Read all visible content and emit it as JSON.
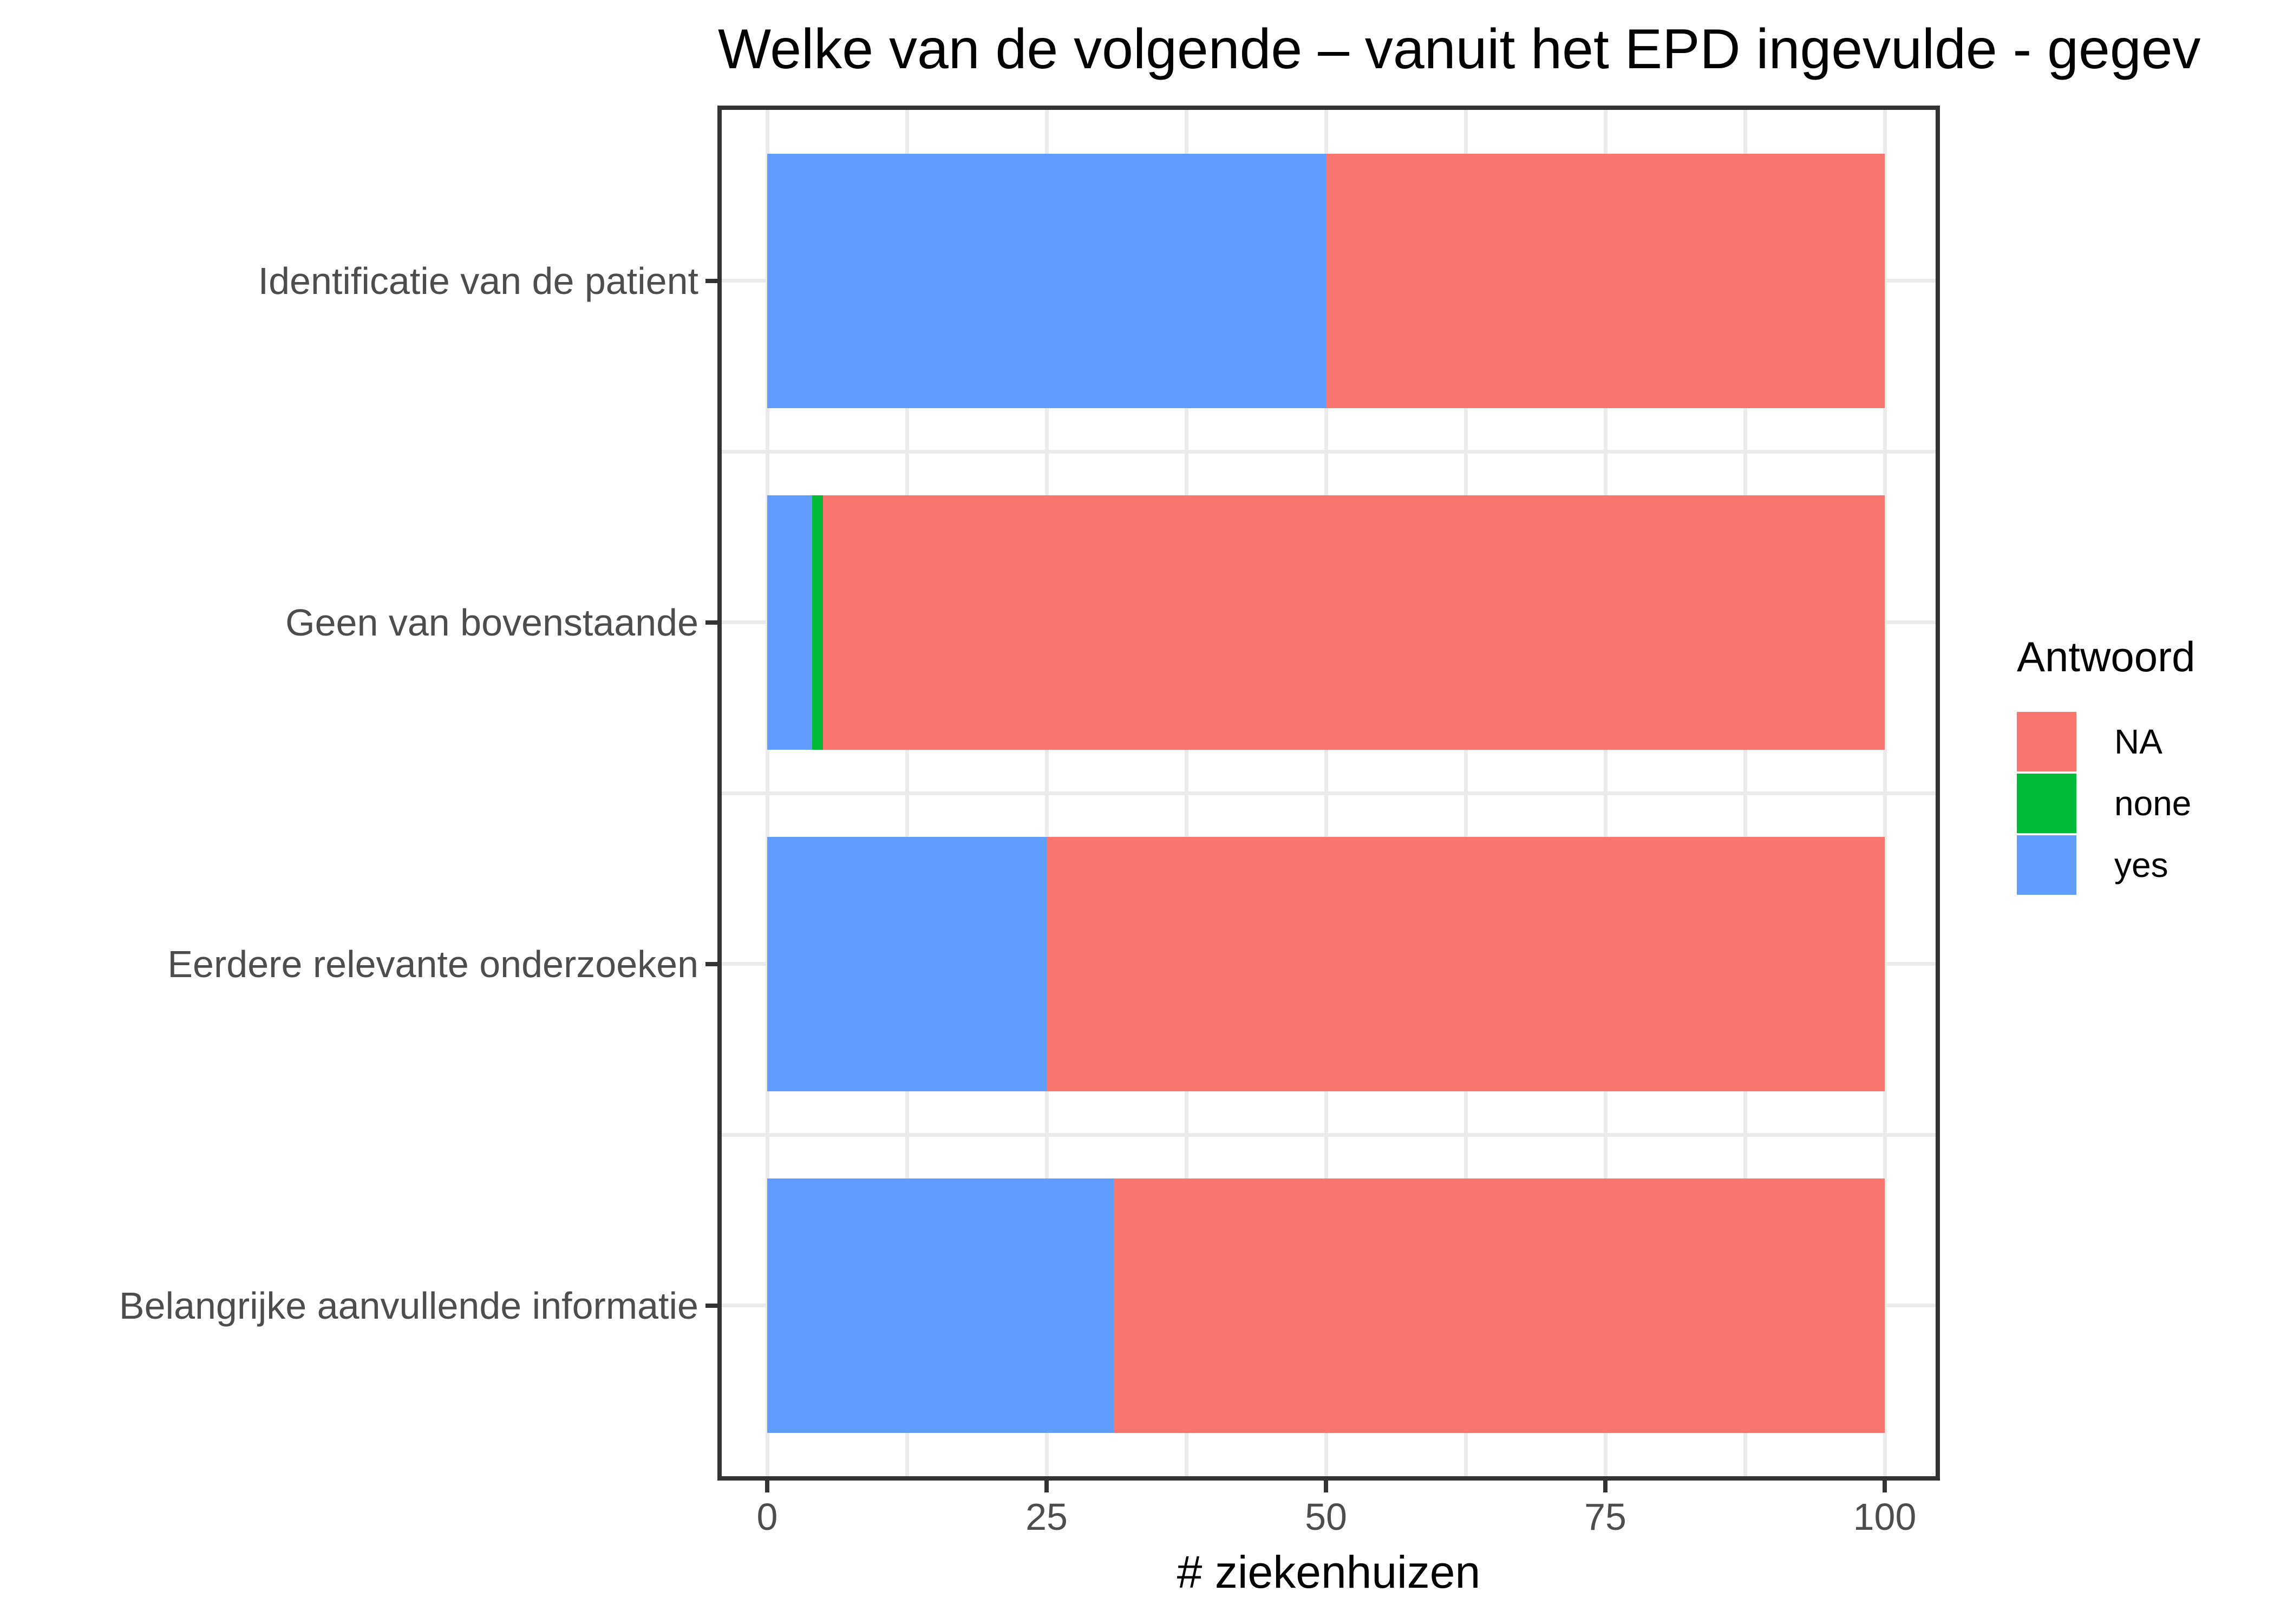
{
  "title": "Welke van de volgende – vanuit het EPD ingevulde - gegev",
  "axes": {
    "x_title": "# ziekenhuizen",
    "x_ticks": [
      0,
      25,
      50,
      75,
      100
    ],
    "x_minor_ticks": [
      12.5,
      37.5,
      62.5,
      87.5
    ]
  },
  "legend": {
    "title": "Antwoord",
    "entries": [
      {
        "label": "NA",
        "color": "#F8766D"
      },
      {
        "label": "none",
        "color": "#00BA38"
      },
      {
        "label": "yes",
        "color": "#619CFF"
      }
    ]
  },
  "chart_data": {
    "type": "bar",
    "orientation": "horizontal",
    "stacked": true,
    "title": "Welke van de volgende – vanuit het EPD ingevulde - gegev",
    "xlabel": "# ziekenhuizen",
    "ylabel": "",
    "xlim": [
      0,
      100
    ],
    "grid": true,
    "legend_position": "right",
    "categories": [
      "Identificatie van de patient",
      "Geen van bovenstaande",
      "Eerdere relevante onderzoeken",
      "Belangrijke aanvullende informatie"
    ],
    "series": [
      {
        "name": "yes",
        "color": "#619CFF",
        "values": [
          50,
          4,
          25,
          31
        ]
      },
      {
        "name": "none",
        "color": "#00BA38",
        "values": [
          0,
          1,
          0,
          0
        ]
      },
      {
        "name": "NA",
        "color": "#F8766D",
        "values": [
          50,
          95,
          75,
          69
        ]
      }
    ]
  },
  "colors": {
    "panel_border": "#333333",
    "gridline": "#EBEBEB",
    "axis_text": "#4D4D4D",
    "text": "#000000",
    "background": "#ffffff"
  }
}
